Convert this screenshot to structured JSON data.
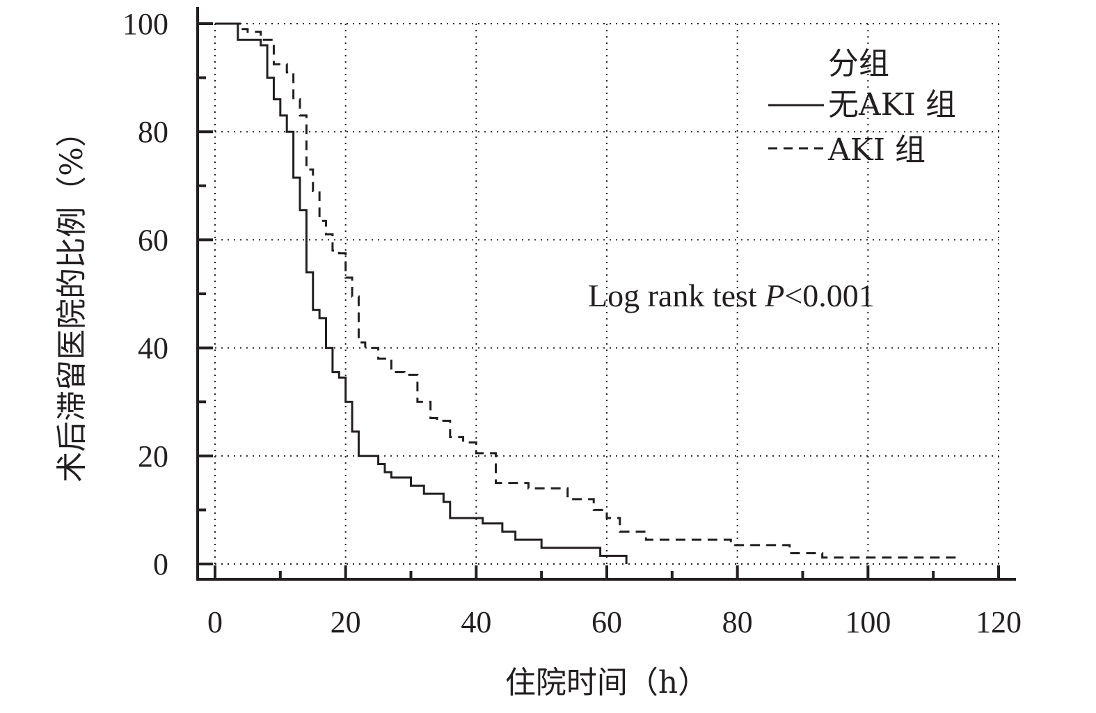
{
  "chart_data": {
    "type": "line",
    "subtype": "kaplan-meier step curves",
    "xlabel": "住院时间（h）",
    "ylabel": "术后滞留医院的比例（%）",
    "xlim": [
      0,
      120
    ],
    "ylim": [
      0,
      100
    ],
    "x_ticks": [
      0,
      20,
      40,
      60,
      80,
      100,
      120
    ],
    "y_ticks": [
      0,
      20,
      40,
      60,
      80,
      100
    ],
    "grid": true,
    "grid_style": "dotted",
    "legend": {
      "title": "分组",
      "placement": "top-right",
      "entries": [
        {
          "label": "无AKI 组",
          "style": "solid"
        },
        {
          "label": "AKI 组",
          "style": "dashed"
        }
      ]
    },
    "annotation": {
      "prefix": "Log rank test ",
      "italic": "P",
      "suffix": "<0.001"
    },
    "colors": {
      "line": "#231f20",
      "grid": "#231f20"
    },
    "series": [
      {
        "name": "无AKI 组",
        "style": "solid",
        "x": [
          0,
          3.5,
          7,
          8,
          9,
          10,
          11,
          12,
          13,
          14,
          15,
          16,
          17,
          18,
          19,
          20,
          21,
          22,
          24,
          25,
          26,
          27,
          30,
          32,
          35,
          36,
          41,
          44,
          46,
          50,
          59,
          63
        ],
        "y": [
          100,
          97,
          96,
          90,
          86,
          83,
          80,
          71.5,
          65.5,
          54,
          47,
          45.5,
          40,
          35.5,
          34.5,
          30,
          24.5,
          20,
          20,
          18.5,
          17,
          16,
          14.5,
          13,
          11.5,
          8.5,
          7.5,
          6,
          4.5,
          3,
          1.5,
          0
        ]
      },
      {
        "name": "AKI 组",
        "style": "dashed",
        "x": [
          0,
          4,
          5,
          7,
          9,
          11,
          12,
          13,
          14,
          15,
          16,
          17,
          18,
          19,
          20,
          21,
          22,
          23,
          24,
          25,
          27,
          29,
          31,
          33,
          34,
          36,
          38,
          40,
          43,
          48,
          54,
          58,
          60,
          62,
          66,
          79,
          88,
          93,
          114
        ],
        "y": [
          100,
          99,
          98.5,
          97,
          92.5,
          91,
          86,
          83,
          73,
          69,
          63.5,
          61,
          58,
          57.5,
          53,
          49.5,
          41,
          40,
          40,
          38,
          35.5,
          35,
          30,
          27,
          26.5,
          23.5,
          22.5,
          20.5,
          15,
          14,
          12,
          10,
          8.5,
          6,
          4.5,
          3.5,
          2,
          1.2,
          1.2
        ]
      }
    ]
  }
}
